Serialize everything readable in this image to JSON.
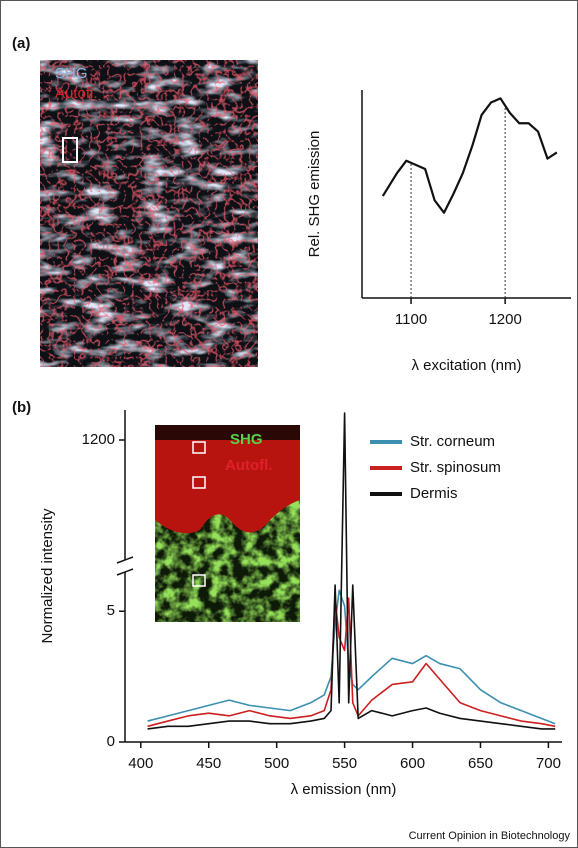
{
  "chart_data": [
    {
      "type": "line",
      "panel_label": "(a)",
      "image_labels": [
        "SHG",
        "Autofl."
      ],
      "ylabel": "Rel. SHG emission",
      "xlabel": "λ excitation (nm)",
      "x": [
        1070,
        1085,
        1095,
        1105,
        1115,
        1125,
        1135,
        1145,
        1155,
        1165,
        1175,
        1185,
        1195,
        1205,
        1215,
        1225,
        1235,
        1245,
        1255
      ],
      "values": [
        0.49,
        0.6,
        0.66,
        0.64,
        0.62,
        0.47,
        0.41,
        0.5,
        0.6,
        0.73,
        0.88,
        0.94,
        0.96,
        0.89,
        0.84,
        0.84,
        0.8,
        0.67,
        0.7
      ],
      "color": "#111111",
      "xlim": [
        1050,
        1270
      ],
      "ylim": [
        0,
        1
      ],
      "xticks": [
        1100,
        1200
      ],
      "vlines": [
        1100,
        1200
      ]
    },
    {
      "type": "line",
      "panel_label": "(b)",
      "image_labels": [
        "SHG",
        "Autofl."
      ],
      "ylabel": "Normalized intensity",
      "xlabel": "λ emission (nm)",
      "x": [
        405,
        420,
        435,
        450,
        465,
        480,
        495,
        510,
        525,
        535,
        540,
        543,
        546,
        550,
        553,
        556,
        560,
        570,
        585,
        600,
        610,
        620,
        635,
        650,
        665,
        680,
        695,
        705
      ],
      "series": [
        {
          "name": "Str. corneum",
          "color": "#3d8fb0",
          "values": [
            0.8,
            1.0,
            1.2,
            1.4,
            1.6,
            1.4,
            1.3,
            1.2,
            1.5,
            1.8,
            2.5,
            4.5,
            5.8,
            5.2,
            3.0,
            2.2,
            2.0,
            2.5,
            3.2,
            3.0,
            3.3,
            3.0,
            2.8,
            2.0,
            1.5,
            1.2,
            0.9,
            0.7
          ]
        },
        {
          "name": "Str. spinosum",
          "color": "#cc1f1f",
          "values": [
            0.6,
            0.8,
            1.0,
            1.1,
            1.0,
            1.2,
            1.0,
            0.9,
            1.0,
            1.2,
            2.0,
            5.5,
            4.0,
            3.5,
            5.5,
            1.5,
            1.0,
            1.6,
            2.2,
            2.3,
            3.0,
            2.4,
            1.5,
            1.2,
            1.0,
            0.8,
            0.7,
            0.6
          ]
        },
        {
          "name": "Dermis",
          "color": "#111111",
          "values": [
            0.5,
            0.6,
            0.6,
            0.7,
            0.8,
            0.8,
            0.7,
            0.7,
            0.8,
            0.9,
            1.2,
            6.0,
            1.5,
            1245,
            1.5,
            6.0,
            0.9,
            1.2,
            1.0,
            1.2,
            1.3,
            1.1,
            0.9,
            0.8,
            0.7,
            0.6,
            0.5,
            0.5
          ]
        }
      ],
      "xlim": [
        395,
        710
      ],
      "ylim": [
        0,
        1250
      ],
      "ybreak": [
        6.5,
        1000
      ],
      "xticks": [
        400,
        450,
        500,
        550,
        600,
        650,
        700
      ],
      "yticks": [
        0,
        5,
        1200
      ],
      "legend": "upper right"
    }
  ],
  "footer": "Current Opinion in Biotechnology"
}
